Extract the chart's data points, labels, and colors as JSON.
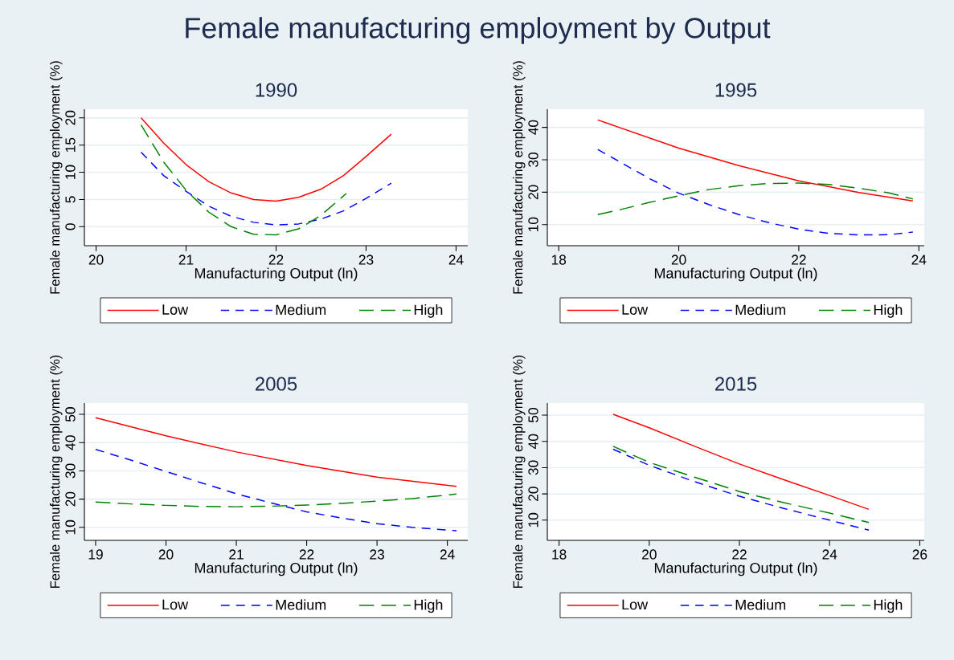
{
  "chart_data": [
    {
      "type": "line",
      "title": "Female manufacturing employment by Output",
      "subtitle": "1990",
      "xlabel": "Manufacturing Output (ln)",
      "ylabel": "Female manufacturing employment (%)",
      "xlim": [
        19.87,
        24.13
      ],
      "ylim": [
        -3.5,
        21.6
      ],
      "xticks": [
        20,
        21,
        22,
        23,
        24
      ],
      "yticks": [
        0,
        5,
        10,
        15,
        20
      ],
      "grid": "y",
      "legend": "bottom",
      "series": [
        {
          "name": "Low",
          "color": "#ff0000",
          "line_style": "solid",
          "x": [
            20.5,
            20.75,
            21,
            21.25,
            21.5,
            21.75,
            22,
            22.25,
            22.5,
            22.75,
            23,
            23.28
          ],
          "values": [
            20,
            15.4,
            11.4,
            8.3,
            6.2,
            5.0,
            4.7,
            5.4,
            6.9,
            9.4,
            12.9,
            17
          ]
        },
        {
          "name": "Medium",
          "color": "#0000ff",
          "line_style": "dashed",
          "x": [
            20.5,
            20.75,
            21,
            21.25,
            21.5,
            21.75,
            22,
            22.25,
            22.5,
            22.75,
            23,
            23.28
          ],
          "values": [
            13.7,
            9.4,
            6.5,
            3.8,
            1.9,
            0.8,
            0.3,
            0.5,
            1.4,
            2.9,
            5.2,
            8.0
          ]
        },
        {
          "name": "High",
          "color": "#008000",
          "line_style": "dashed",
          "x": [
            20.5,
            20.75,
            21,
            21.25,
            21.5,
            21.75,
            22,
            22.25,
            22.5,
            22.78
          ],
          "values": [
            18.7,
            11.9,
            6.7,
            2.7,
            0,
            -1.4,
            -1.5,
            -0.4,
            2.1,
            6.1
          ]
        }
      ]
    },
    {
      "type": "line",
      "subtitle": "1995",
      "xlabel": "Manufacturing Output (ln)",
      "ylabel": "Female manufacturing employment (%)",
      "xlim": [
        17.81,
        24.09
      ],
      "ylim": [
        3.5,
        45.6
      ],
      "xticks": [
        18,
        20,
        22,
        24
      ],
      "yticks": [
        10,
        20,
        30,
        40
      ],
      "grid": "y",
      "legend": "bottom",
      "series": [
        {
          "name": "Low",
          "color": "#ff0000",
          "line_style": "solid",
          "x": [
            18.65,
            20,
            21,
            22,
            23,
            23.9
          ],
          "values": [
            42.3,
            33.6,
            28.2,
            23.5,
            19.9,
            17.3
          ]
        },
        {
          "name": "Medium",
          "color": "#0000ff",
          "line_style": "dashed",
          "x": [
            18.65,
            19.5,
            20,
            20.5,
            21,
            21.5,
            22,
            22.5,
            23,
            23.5,
            23.9
          ],
          "values": [
            33.2,
            24.3,
            19.7,
            16.2,
            13.1,
            10.6,
            8.6,
            7.3,
            6.8,
            6.9,
            7.7
          ]
        },
        {
          "name": "High",
          "color": "#008000",
          "line_style": "dashed",
          "x": [
            18.65,
            19,
            19.5,
            20,
            20.5,
            21,
            21.5,
            22,
            22.5,
            23,
            23.5,
            23.9
          ],
          "values": [
            13.1,
            14.5,
            16.8,
            18.9,
            20.8,
            22.0,
            22.7,
            22.8,
            22.4,
            21.2,
            19.8,
            17.9
          ]
        }
      ]
    },
    {
      "type": "line",
      "subtitle": "2005",
      "xlabel": "Manufacturing Output (ln)",
      "ylabel": "Female manufacturing employment (%)",
      "xlim": [
        18.84,
        24.29
      ],
      "ylim": [
        5.4,
        54
      ],
      "xticks": [
        19,
        20,
        21,
        22,
        23,
        24
      ],
      "yticks": [
        10,
        20,
        30,
        40,
        50
      ],
      "grid": "y",
      "legend": "bottom",
      "series": [
        {
          "name": "Low",
          "color": "#ff0000",
          "line_style": "solid",
          "x": [
            19,
            20,
            21,
            22,
            23,
            24.13
          ],
          "values": [
            48.8,
            42.4,
            36.7,
            31.9,
            27.8,
            24.5
          ]
        },
        {
          "name": "Medium",
          "color": "#0000ff",
          "line_style": "dashed",
          "x": [
            19,
            19.5,
            20,
            20.5,
            21,
            21.5,
            22,
            22.5,
            23,
            23.5,
            24.13
          ],
          "values": [
            37.6,
            33.8,
            29.8,
            25.8,
            21.9,
            18.6,
            15.5,
            13.3,
            11.3,
            10.0,
            8.8
          ]
        },
        {
          "name": "High",
          "color": "#008000",
          "line_style": "dashed",
          "x": [
            19,
            19.5,
            20,
            20.5,
            21,
            21.5,
            22,
            22.5,
            23,
            23.5,
            24.13
          ],
          "values": [
            19.0,
            18.3,
            17.8,
            17.4,
            17.3,
            17.5,
            17.9,
            18.5,
            19.3,
            20.2,
            21.8
          ]
        }
      ]
    },
    {
      "type": "line",
      "subtitle": "2015",
      "xlabel": "Manufacturing Output (ln)",
      "ylabel": "Female manufacturing employment (%)",
      "xlim": [
        17.74,
        26.1
      ],
      "ylim": [
        2.3,
        54.6
      ],
      "xticks": [
        18,
        20,
        22,
        24,
        26
      ],
      "yticks": [
        10,
        20,
        30,
        40,
        50
      ],
      "grid": "y",
      "legend": "bottom",
      "series": [
        {
          "name": "Low",
          "color": "#ff0000",
          "line_style": "solid",
          "x": [
            19.2,
            20,
            21,
            22,
            23,
            24,
            24.87
          ],
          "values": [
            50.3,
            45.2,
            38.2,
            31.4,
            25.3,
            19.4,
            14.1
          ]
        },
        {
          "name": "Medium",
          "color": "#0000ff",
          "line_style": "dashed",
          "x": [
            19.2,
            20,
            21,
            22,
            23,
            24,
            24.87
          ],
          "values": [
            37.0,
            30.9,
            24.7,
            19.1,
            14.4,
            10.0,
            6.2
          ]
        },
        {
          "name": "High",
          "color": "#008000",
          "line_style": "dashed",
          "x": [
            19.2,
            20,
            21,
            22,
            23,
            24,
            24.87
          ],
          "values": [
            38.1,
            32.0,
            26.4,
            20.9,
            16.6,
            12.7,
            9.1
          ]
        }
      ]
    }
  ]
}
